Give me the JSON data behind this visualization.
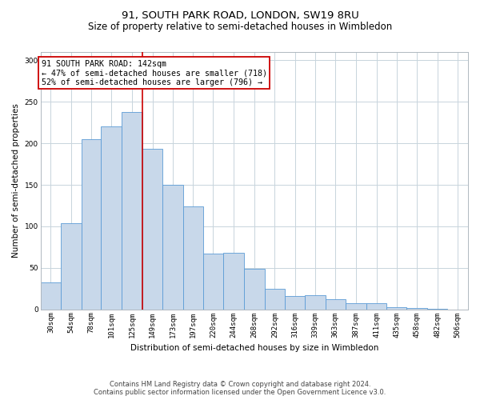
{
  "title1": "91, SOUTH PARK ROAD, LONDON, SW19 8RU",
  "title2": "Size of property relative to semi-detached houses in Wimbledon",
  "xlabel": "Distribution of semi-detached houses by size in Wimbledon",
  "ylabel": "Number of semi-detached properties",
  "footer1": "Contains HM Land Registry data © Crown copyright and database right 2024.",
  "footer2": "Contains public sector information licensed under the Open Government Licence v3.0.",
  "annotation_line1": "91 SOUTH PARK ROAD: 142sqm",
  "annotation_line2": "← 47% of semi-detached houses are smaller (718)",
  "annotation_line3": "52% of semi-detached houses are larger (796) →",
  "bar_labels": [
    "30sqm",
    "54sqm",
    "78sqm",
    "101sqm",
    "125sqm",
    "149sqm",
    "173sqm",
    "197sqm",
    "220sqm",
    "244sqm",
    "268sqm",
    "292sqm",
    "316sqm",
    "339sqm",
    "363sqm",
    "387sqm",
    "411sqm",
    "435sqm",
    "458sqm",
    "482sqm",
    "506sqm"
  ],
  "bar_values": [
    32,
    104,
    205,
    220,
    238,
    193,
    150,
    124,
    67,
    68,
    49,
    25,
    16,
    17,
    12,
    7,
    7,
    3,
    2,
    1,
    0
  ],
  "bar_edges": [
    30,
    54,
    78,
    101,
    125,
    149,
    173,
    197,
    220,
    244,
    268,
    292,
    316,
    339,
    363,
    387,
    411,
    435,
    458,
    482,
    506
  ],
  "bar_color": "#c8d8ea",
  "bar_edgecolor": "#5b9bd5",
  "vline_color": "#cc0000",
  "vline_x": 149,
  "ylim": [
    0,
    310
  ],
  "yticks": [
    0,
    50,
    100,
    150,
    200,
    250,
    300
  ],
  "grid_color": "#c8d4dc",
  "annotation_box_color": "#cc0000",
  "title_fontsize": 9.5,
  "subtitle_fontsize": 8.5,
  "axis_label_fontsize": 7.5,
  "tick_fontsize": 6.5,
  "annotation_fontsize": 7.2,
  "footer_fontsize": 6.0
}
